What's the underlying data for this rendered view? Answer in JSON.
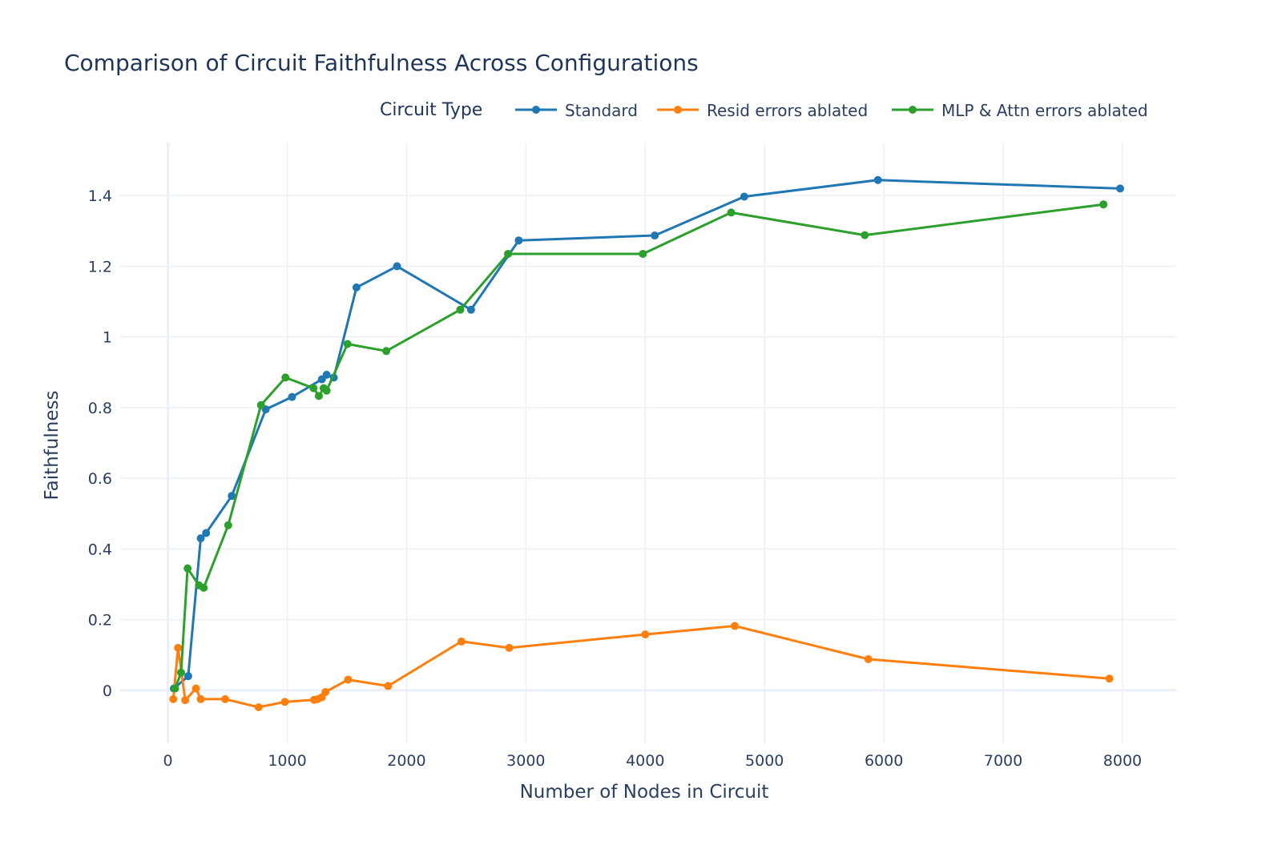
{
  "chart_data": {
    "type": "line",
    "title": "Comparison of Circuit Faithfulness Across Configurations",
    "xlabel": "Number of Nodes in Circuit",
    "ylabel": "Faithfulness",
    "xlim": [
      -400,
      8450
    ],
    "ylim": [
      -0.15,
      1.55
    ],
    "xticks": [
      0,
      1000,
      2000,
      3000,
      4000,
      5000,
      6000,
      7000,
      8000
    ],
    "xtick_labels": [
      "0",
      "1000",
      "2000",
      "3000",
      "4000",
      "5000",
      "6000",
      "7000",
      "8000"
    ],
    "yticks": [
      0,
      0.2,
      0.4,
      0.6,
      0.8,
      1.0,
      1.2,
      1.4
    ],
    "ytick_labels": [
      "0",
      "0.2",
      "0.4",
      "0.6",
      "0.8",
      "1",
      "1.2",
      "1.4"
    ],
    "legend_title": "Circuit Type",
    "legend_position": "top-right",
    "grid": true,
    "series": [
      {
        "name": "Standard",
        "color": "#1f77b4",
        "x": [
          50,
          170,
          275,
          320,
          535,
          820,
          1040,
          1290,
          1330,
          1390,
          1580,
          1920,
          2540,
          2940,
          4080,
          4830,
          5950,
          7980
        ],
        "y": [
          0.005,
          0.04,
          0.43,
          0.445,
          0.55,
          0.795,
          0.83,
          0.88,
          0.893,
          0.885,
          1.14,
          1.2,
          1.077,
          1.273,
          1.287,
          1.397,
          1.444,
          1.42
        ]
      },
      {
        "name": "Resid errors ablated",
        "color": "#ff7f0e",
        "x": [
          45,
          85,
          145,
          235,
          275,
          480,
          760,
          980,
          1225,
          1255,
          1290,
          1320,
          1510,
          1845,
          2460,
          2860,
          4000,
          4750,
          5870,
          7890
        ],
        "y": [
          -0.025,
          0.12,
          -0.028,
          0.005,
          -0.025,
          -0.025,
          -0.048,
          -0.033,
          -0.027,
          -0.025,
          -0.02,
          -0.005,
          0.03,
          0.012,
          0.138,
          0.12,
          0.158,
          0.182,
          0.088,
          0.033
        ]
      },
      {
        "name": "MLP & Attn errors ablated",
        "color": "#2ca02c",
        "x": [
          60,
          110,
          165,
          260,
          300,
          505,
          780,
          985,
          1220,
          1265,
          1305,
          1330,
          1505,
          1830,
          2450,
          2850,
          3980,
          4720,
          5840,
          7840
        ],
        "y": [
          0.005,
          0.05,
          0.345,
          0.297,
          0.29,
          0.467,
          0.807,
          0.885,
          0.855,
          0.833,
          0.855,
          0.848,
          0.98,
          0.96,
          1.077,
          1.235,
          1.235,
          1.352,
          1.288,
          1.375
        ]
      }
    ]
  }
}
